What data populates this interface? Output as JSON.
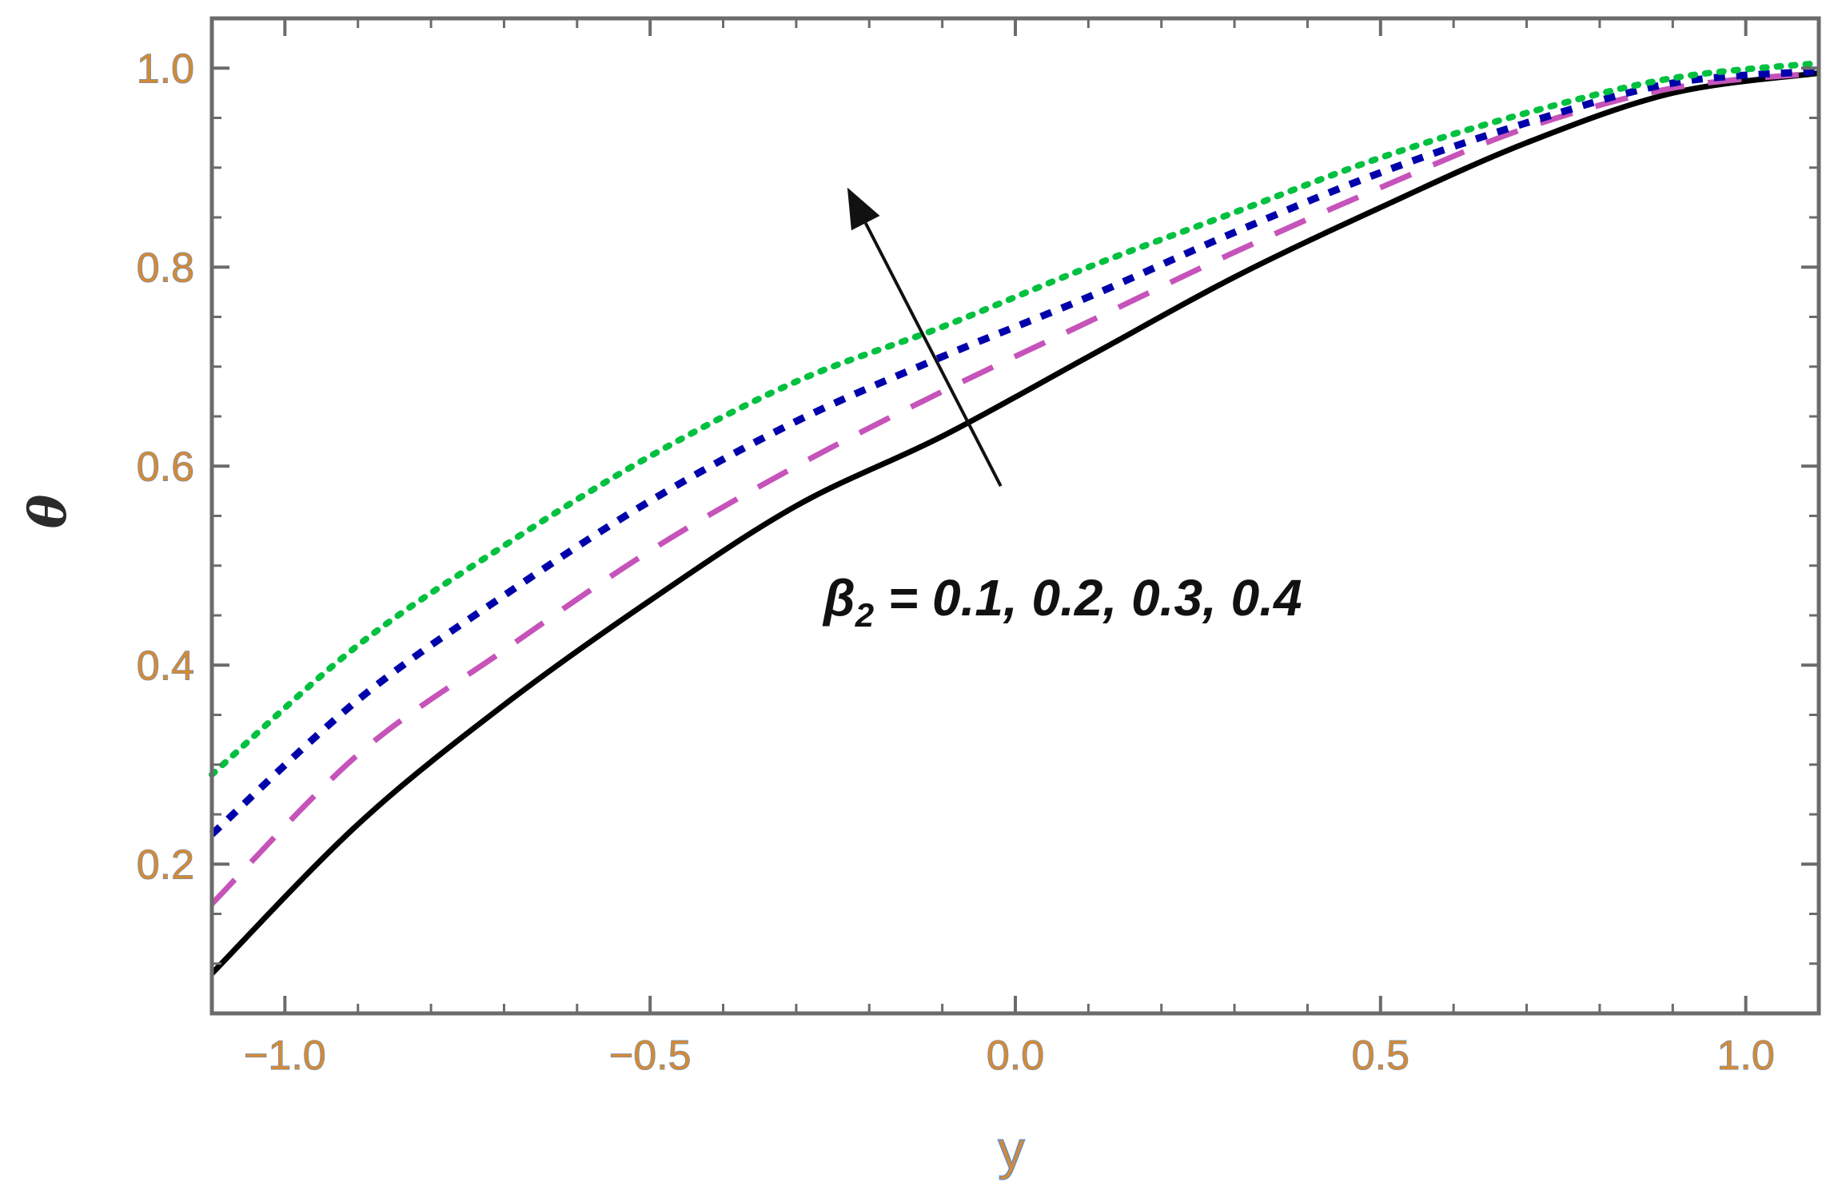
{
  "chart_data": {
    "type": "line",
    "xlabel": "y",
    "ylabel": "θ",
    "xlim": [
      -1.1,
      1.1
    ],
    "ylim": [
      0.05,
      1.05
    ],
    "x_ticks": [
      -1.0,
      -0.5,
      0.0,
      0.5,
      1.0
    ],
    "x_tick_labels": [
      "−1.0",
      "−0.5",
      "0.0",
      "0.5",
      "1.0"
    ],
    "y_ticks": [
      0.2,
      0.4,
      0.6,
      0.8,
      1.0
    ],
    "y_tick_labels": [
      "0.2",
      "0.4",
      "0.6",
      "0.8",
      "1.0"
    ],
    "grid": false,
    "annotation": {
      "symbol": "β",
      "subscript": "2",
      "text": " = 0.1, 0.2, 0.3, 0.4",
      "arrow_direction": "up-left",
      "arrow_from": {
        "x": -0.02,
        "y": 0.58
      },
      "arrow_to": {
        "x": -0.23,
        "y": 0.88
      }
    },
    "series": [
      {
        "color": "#000000",
        "style": "solid",
        "x": [
          -1.1,
          -0.9,
          -0.7,
          -0.5,
          -0.3,
          -0.1,
          0.1,
          0.3,
          0.5,
          0.7,
          0.9,
          1.1
        ],
        "y": [
          0.09,
          0.24,
          0.36,
          0.465,
          0.56,
          0.63,
          0.71,
          0.79,
          0.86,
          0.925,
          0.975,
          0.995
        ]
      },
      {
        "color": "#c653b9",
        "style": "long-dash",
        "x": [
          -1.1,
          -0.9,
          -0.7,
          -0.5,
          -0.3,
          -0.1,
          0.1,
          0.3,
          0.5,
          0.7,
          0.9,
          1.1
        ],
        "y": [
          0.16,
          0.31,
          0.415,
          0.515,
          0.6,
          0.675,
          0.745,
          0.815,
          0.88,
          0.94,
          0.98,
          0.995
        ]
      },
      {
        "color": "#0000aa",
        "style": "short-dash",
        "x": [
          -1.1,
          -0.9,
          -0.7,
          -0.5,
          -0.3,
          -0.1,
          0.1,
          0.3,
          0.5,
          0.7,
          0.9,
          1.1
        ],
        "y": [
          0.23,
          0.365,
          0.47,
          0.565,
          0.645,
          0.71,
          0.77,
          0.835,
          0.895,
          0.945,
          0.985,
          0.997
        ]
      },
      {
        "color": "#00c040",
        "style": "dotted",
        "x": [
          -1.1,
          -0.9,
          -0.7,
          -0.5,
          -0.3,
          -0.1,
          0.1,
          0.3,
          0.5,
          0.7,
          0.9,
          1.1
        ],
        "y": [
          0.29,
          0.42,
          0.52,
          0.61,
          0.685,
          0.74,
          0.8,
          0.855,
          0.91,
          0.955,
          0.99,
          1.005
        ]
      }
    ]
  }
}
